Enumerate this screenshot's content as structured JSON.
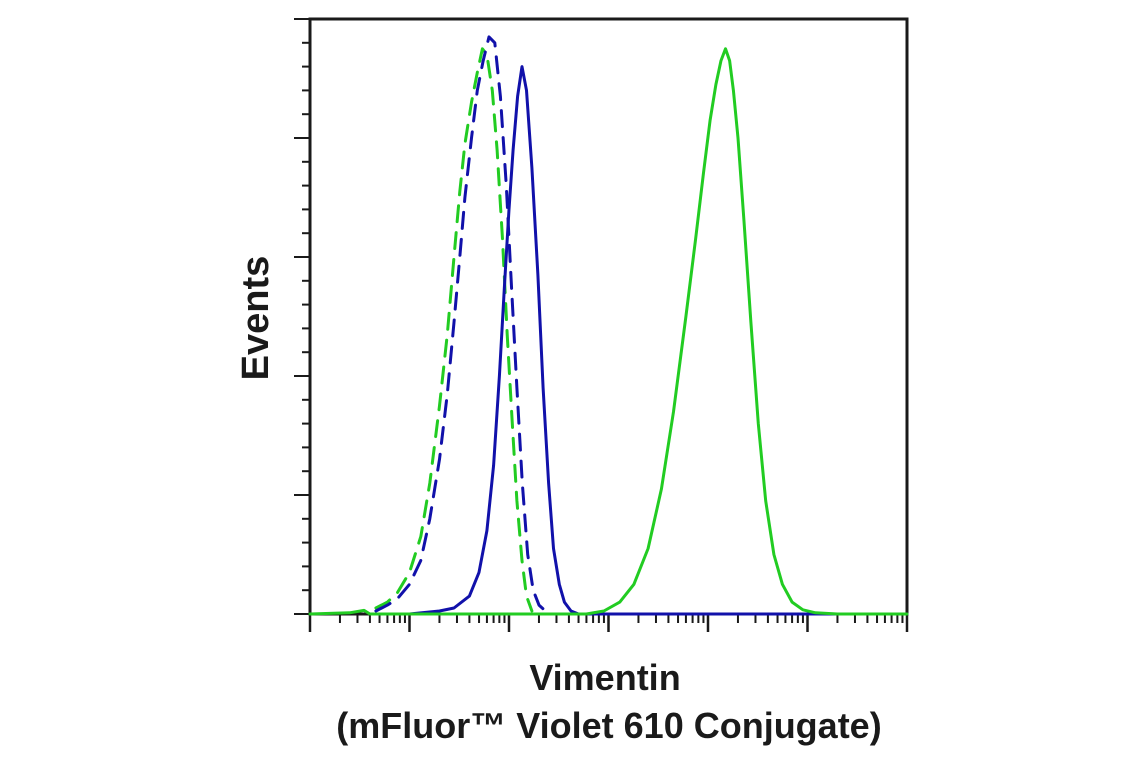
{
  "chart_data": {
    "type": "line",
    "xlabel_line1": "Vimentin",
    "xlabel_line2": "(mFluor™ Violet 610 Conjugate)",
    "ylabel": "Events",
    "x_scale": "log",
    "xlim": [
      0.1,
      100000
    ],
    "ylim": [
      0,
      100
    ],
    "grid": false,
    "legend": "none",
    "series": [
      {
        "color": "#22cc22",
        "dash": "dashed",
        "points": [
          [
            0.46,
            1
          ],
          [
            0.6,
            2
          ],
          [
            0.75,
            3.5
          ],
          [
            1.0,
            7
          ],
          [
            1.3,
            13
          ],
          [
            1.6,
            22
          ],
          [
            2.0,
            35
          ],
          [
            2.4,
            47
          ],
          [
            2.8,
            60
          ],
          [
            3.2,
            71
          ],
          [
            3.6,
            79
          ],
          [
            4.2,
            86
          ],
          [
            4.8,
            91
          ],
          [
            5.4,
            95
          ],
          [
            6.0,
            94
          ],
          [
            6.8,
            88
          ],
          [
            7.6,
            78
          ],
          [
            8.6,
            63
          ],
          [
            9.6,
            47
          ],
          [
            10.8,
            32
          ],
          [
            12.0,
            19
          ],
          [
            13.5,
            9
          ],
          [
            15.0,
            3
          ],
          [
            17.0,
            0.5
          ]
        ]
      },
      {
        "color": "#1111aa",
        "dash": "dashed",
        "points": [
          [
            0.46,
            0.5
          ],
          [
            0.6,
            1.5
          ],
          [
            0.75,
            2.5
          ],
          [
            1.0,
            5
          ],
          [
            1.3,
            9
          ],
          [
            1.6,
            16
          ],
          [
            2.0,
            26
          ],
          [
            2.4,
            37
          ],
          [
            2.8,
            49
          ],
          [
            3.2,
            60
          ],
          [
            3.6,
            70
          ],
          [
            4.2,
            80
          ],
          [
            4.8,
            88
          ],
          [
            5.5,
            93
          ],
          [
            6.3,
            97
          ],
          [
            7.2,
            96
          ],
          [
            8.2,
            87
          ],
          [
            9.4,
            72
          ],
          [
            10.6,
            55
          ],
          [
            12.0,
            38
          ],
          [
            13.6,
            22
          ],
          [
            15.4,
            10
          ],
          [
            17.5,
            4
          ],
          [
            20.0,
            1.5
          ],
          [
            24.0,
            0.3
          ]
        ]
      },
      {
        "color": "#1111aa",
        "dash": "solid",
        "points": [
          [
            1.0,
            0
          ],
          [
            2.0,
            0.5
          ],
          [
            2.8,
            1
          ],
          [
            4.0,
            3
          ],
          [
            5.0,
            7
          ],
          [
            6.0,
            14
          ],
          [
            7.0,
            25
          ],
          [
            8.0,
            40
          ],
          [
            9.0,
            55
          ],
          [
            10.0,
            68
          ],
          [
            11.0,
            78
          ],
          [
            12.2,
            87
          ],
          [
            13.5,
            92
          ],
          [
            15.0,
            88
          ],
          [
            17.0,
            75
          ],
          [
            19.5,
            57
          ],
          [
            22.0,
            38
          ],
          [
            25.0,
            22
          ],
          [
            28.0,
            11
          ],
          [
            32.0,
            5
          ],
          [
            36.0,
            2
          ],
          [
            42.0,
            0.5
          ],
          [
            50.0,
            0
          ],
          [
            2000,
            0
          ],
          [
            100000,
            0
          ]
        ]
      },
      {
        "color": "#22cc22",
        "dash": "solid",
        "points": [
          [
            0.1,
            0
          ],
          [
            0.25,
            0.2
          ],
          [
            0.35,
            0.6
          ],
          [
            0.4,
            0
          ],
          [
            60,
            0
          ],
          [
            90,
            0.5
          ],
          [
            130,
            2
          ],
          [
            180,
            5
          ],
          [
            250,
            11
          ],
          [
            340,
            21
          ],
          [
            450,
            34
          ],
          [
            600,
            50
          ],
          [
            750,
            63
          ],
          [
            900,
            74
          ],
          [
            1050,
            83
          ],
          [
            1200,
            89
          ],
          [
            1350,
            93
          ],
          [
            1500,
            95
          ],
          [
            1650,
            93
          ],
          [
            1800,
            88
          ],
          [
            2000,
            80
          ],
          [
            2300,
            66
          ],
          [
            2700,
            49
          ],
          [
            3200,
            32
          ],
          [
            3800,
            19
          ],
          [
            4600,
            10
          ],
          [
            5600,
            5
          ],
          [
            7000,
            2
          ],
          [
            9000,
            0.7
          ],
          [
            12000,
            0.2
          ],
          [
            20000,
            0
          ],
          [
            100000,
            0
          ]
        ]
      }
    ]
  }
}
